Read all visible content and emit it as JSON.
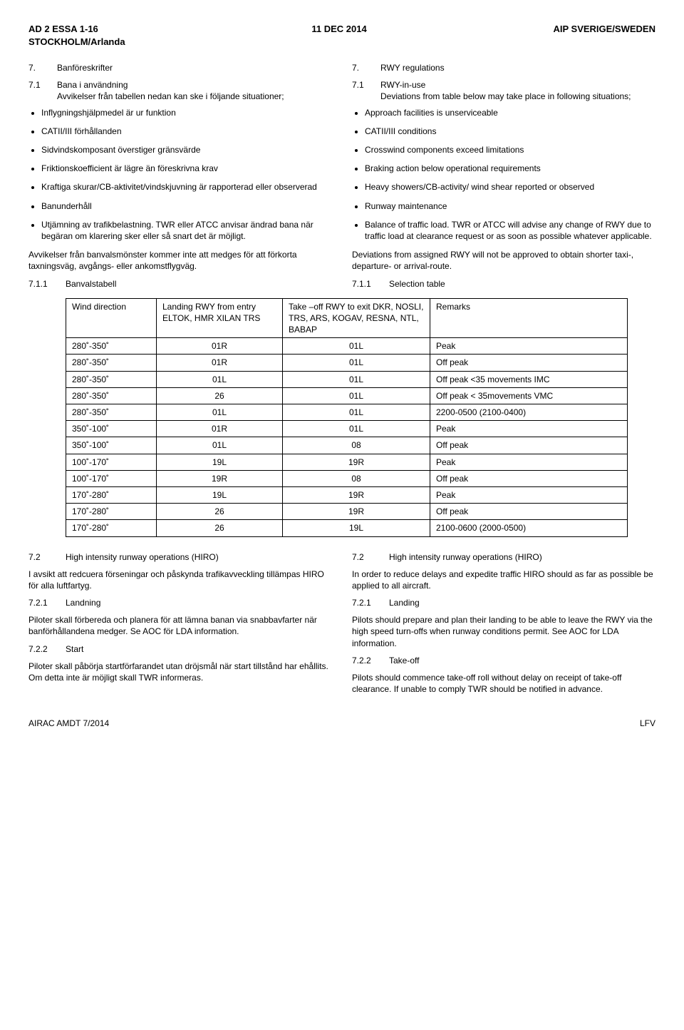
{
  "header": {
    "left": "AD 2 ESSA 1-16\nSTOCKHOLM/Arlanda",
    "center": "11 DEC 2014",
    "right": "AIP SVERIGE/SWEDEN"
  },
  "left": {
    "s7": {
      "num": "7.",
      "title": "Banföreskrifter"
    },
    "s71": {
      "num": "7.1",
      "title": "Bana i användning",
      "sub": "Avvikelser från tabellen nedan kan ske i följande situationer;"
    },
    "bullets": [
      "Inflygningshjälpmedel är ur funktion",
      "CATII/III förhållanden",
      "Sidvindskomposant överstiger gränsvärde",
      "Friktionskoefficient är lägre än föreskrivna krav",
      "Kraftiga skurar/CB-aktivitet/vindskjuvning är rapporterad eller observerad",
      "Banunderhåll",
      "Utjämning av trafikbelastning. TWR eller ATCC anvisar ändrad bana när begäran om klarering sker eller så snart det är möjligt."
    ],
    "para": "Avvikelser från banvalsmönster kommer inte att medges för att förkorta taxningsväg, avgångs- eller ankomstflygväg.",
    "s711": {
      "num": "7.1.1",
      "title": "Banvalstabell"
    }
  },
  "right": {
    "s7": {
      "num": "7.",
      "title": "RWY regulations"
    },
    "s71": {
      "num": "7.1",
      "title": "RWY-in-use",
      "sub": "Deviations from table below may take place in following situations;"
    },
    "bullets": [
      "Approach facilities is unserviceable",
      "CATII/III conditions",
      "Crosswind components exceed limitations",
      "Braking action below operational requirements",
      "Heavy showers/CB-activity/ wind shear reported or observed",
      "Runway maintenance",
      "Balance of traffic load. TWR or ATCC will advise any change of RWY due to traffic load at clearance request or as soon as possible whatever applicable."
    ],
    "para": "Deviations from assigned RWY will not be approved to obtain shorter taxi-, departure- or arrival-route.",
    "s711": {
      "num": "7.1.1",
      "title": "Selection table"
    }
  },
  "table": {
    "headers": {
      "wind": "Wind direction",
      "landing": "Landing RWY from entry\nELTOK, HMR XILAN TRS",
      "takeoff": "Take –off RWY to exit DKR, NOSLI, TRS, ARS, KOGAV, RESNA, NTL, BABAP",
      "remarks": "Remarks"
    },
    "rows": [
      [
        "280˚-350˚",
        "01R",
        "01L",
        "Peak"
      ],
      [
        "280˚-350˚",
        "01R",
        "01L",
        "Off peak"
      ],
      [
        "280˚-350˚",
        "01L",
        "01L",
        "Off peak <35 movements IMC"
      ],
      [
        "280˚-350˚",
        "26",
        "01L",
        "Off peak < 35movements VMC"
      ],
      [
        "280˚-350˚",
        "01L",
        "01L",
        "2200-0500 (2100-0400)"
      ],
      [
        "350˚-100˚",
        "01R",
        "01L",
        "Peak"
      ],
      [
        "350˚-100˚",
        "01L",
        "08",
        "Off peak"
      ],
      [
        "100˚-170˚",
        "19L",
        "19R",
        "Peak"
      ],
      [
        "100˚-170˚",
        "19R",
        "08",
        "Off peak"
      ],
      [
        "170˚-280˚",
        "19L",
        "19R",
        "Peak"
      ],
      [
        "170˚-280˚",
        "26",
        "19R",
        "Off peak"
      ],
      [
        "170˚-280˚",
        "26",
        "19L",
        "2100-0600 (2000-0500)"
      ]
    ]
  },
  "lower_left": {
    "s72": {
      "num": "7.2",
      "title": "High intensity runway operations (HIRO)"
    },
    "p72": "I avsikt att redcuera förseningar och påskynda trafikavveckling tillämpas HIRO för alla luftfartyg.",
    "s721": {
      "num": "7.2.1",
      "title": "Landning"
    },
    "p721": "Piloter skall förbereda och planera för att lämna banan via snabbavfarter när banförhållandena medger. Se AOC för LDA information.",
    "s722": {
      "num": "7.2.2",
      "title": "Start"
    },
    "p722": "Piloter skall påbörja startförfarandet utan dröjsmål när start tillstånd har ehållits. Om detta inte är möjligt skall TWR informeras."
  },
  "lower_right": {
    "s72": {
      "num": "7.2",
      "title": "High intensity runway operations (HIRO)"
    },
    "p72": "In order to reduce delays and expedite traffic HIRO should as far as possible be applied to all aircraft.",
    "s721": {
      "num": "7.2.1",
      "title": "Landing"
    },
    "p721": "Pilots should prepare and plan their landing to be able to leave the RWY via the high speed turn-offs when runway conditions permit. See AOC for LDA information.",
    "s722": {
      "num": "7.2.2",
      "title": "Take-off"
    },
    "p722": "Pilots should commence take-off roll without delay on receipt of take-off clearance. If unable to comply TWR should be notified in advance."
  },
  "footer": {
    "left": "AIRAC AMDT 7/2014",
    "right": "LFV"
  }
}
